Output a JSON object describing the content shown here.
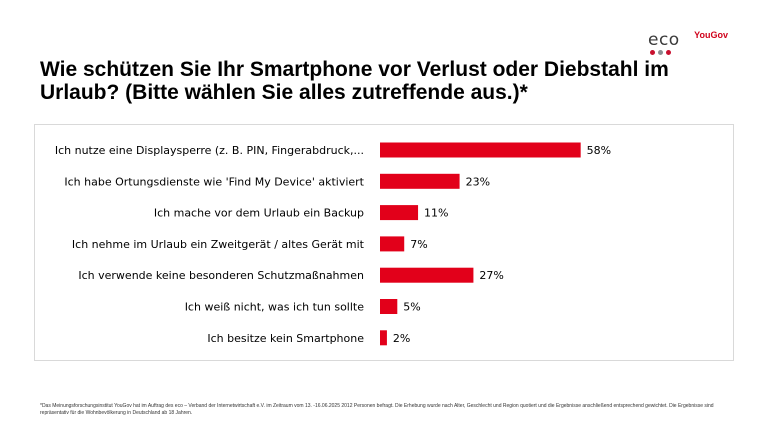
{
  "header": {
    "title": "Wie schützen Sie Ihr Smartphone vor Verlust oder Diebstahl im Urlaub? (Bitte wählen Sie alles zutreffende aus.)*",
    "logo_eco": "eco",
    "logo_yougov": "YouGov",
    "eco_dot_colors": [
      "#c8102e",
      "#8a8d91",
      "#c8102e"
    ]
  },
  "chart_data": {
    "type": "bar",
    "orientation": "horizontal",
    "title": "Wie schützen Sie Ihr Smartphone vor Verlust oder Diebstahl im Urlaub? (Bitte wählen Sie alles zutreffende aus.)*",
    "categories": [
      "Ich nutze eine Displaysperre (z. B. PIN, Fingerabdruck,...",
      "Ich habe Ortungsdienste wie 'Find My Device' aktiviert",
      "Ich mache vor dem Urlaub ein Backup",
      "Ich nehme im Urlaub ein Zweitgerät / altes Gerät mit",
      "Ich verwende keine besonderen Schutzmaßnahmen",
      "Ich weiß nicht, was ich tun sollte",
      "Ich besitze kein Smartphone"
    ],
    "values": [
      58,
      23,
      11,
      7,
      27,
      5,
      2
    ],
    "value_suffix": "%",
    "xlabel": "",
    "ylabel": "",
    "xlim": [
      0,
      100
    ],
    "bar_color": "#e2001a"
  },
  "footnote": {
    "text": "*Das Meinungsforschungsinstitut YouGov hat im Auftrag des eco – Verband der Internetwirtschaft e.V. im Zeitraum vom 13. -16.06.2025 2012 Personen befragt. Die Erhebung wurde nach Alter, Geschlecht und Region quotiert und die Ergebnisse anschließend entsprechend gewichtet. Die Ergebnisse sind repräsentativ für die Wohnbevölkerung in Deutschland ab 18 Jahren."
  }
}
